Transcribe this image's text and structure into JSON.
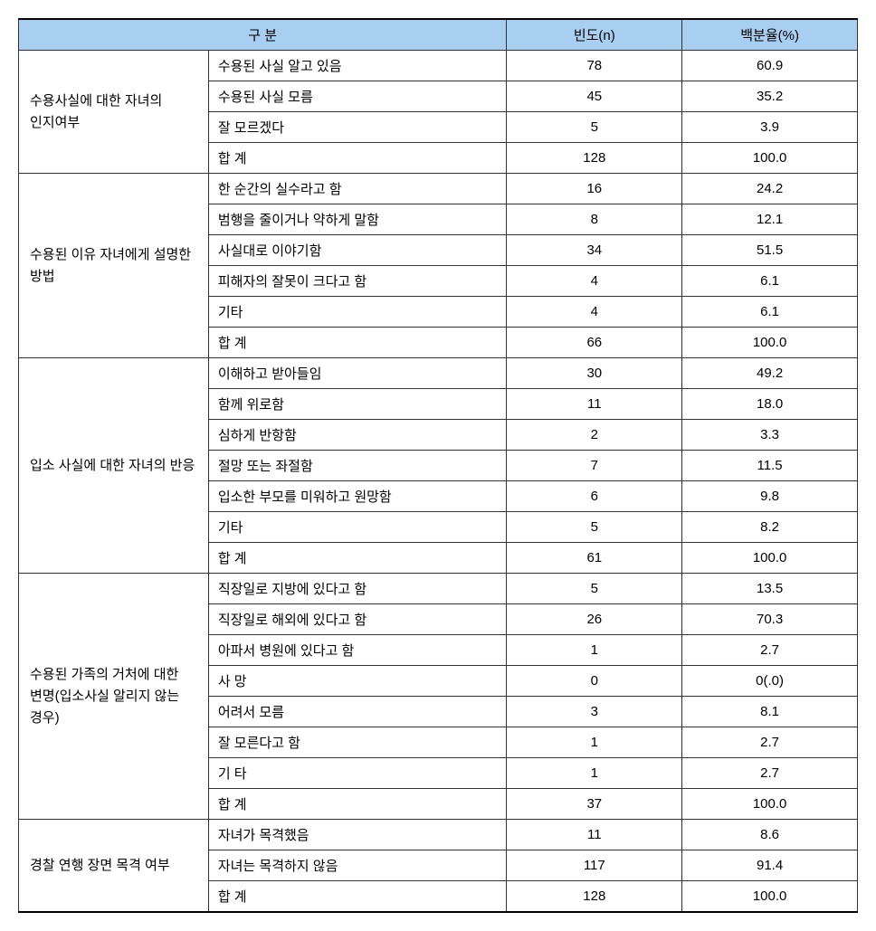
{
  "headers": {
    "category": "구 분",
    "frequency": "빈도(n)",
    "percent": "백분율(%)"
  },
  "sections": [
    {
      "category": "수용사실에 대한 자녀의 인지여부",
      "rows": [
        {
          "item": "수용된 사실 알고 있음",
          "freq": "78",
          "pct": "60.9"
        },
        {
          "item": "수용된 사실 모름",
          "freq": "45",
          "pct": "35.2"
        },
        {
          "item": "잘 모르겠다",
          "freq": "5",
          "pct": "3.9"
        },
        {
          "item": "합 계",
          "freq": "128",
          "pct": "100.0"
        }
      ]
    },
    {
      "category": "수용된 이유 자녀에게 설명한 방법",
      "rows": [
        {
          "item": "한 순간의 실수라고 함",
          "freq": "16",
          "pct": "24.2"
        },
        {
          "item": "범행을 줄이거나 약하게 말함",
          "freq": "8",
          "pct": "12.1"
        },
        {
          "item": "사실대로 이야기함",
          "freq": "34",
          "pct": "51.5"
        },
        {
          "item": "피해자의 잘못이 크다고 함",
          "freq": "4",
          "pct": "6.1"
        },
        {
          "item": "기타",
          "freq": "4",
          "pct": "6.1"
        },
        {
          "item": "합 계",
          "freq": "66",
          "pct": "100.0"
        }
      ]
    },
    {
      "category": "입소 사실에 대한 자녀의 반응",
      "rows": [
        {
          "item": "이해하고 받아들임",
          "freq": "30",
          "pct": "49.2"
        },
        {
          "item": "함께 위로함",
          "freq": "11",
          "pct": "18.0"
        },
        {
          "item": "심하게 반항함",
          "freq": "2",
          "pct": "3.3"
        },
        {
          "item": "절망 또는 좌절함",
          "freq": "7",
          "pct": "11.5"
        },
        {
          "item": "입소한 부모를 미워하고 원망함",
          "freq": "6",
          "pct": "9.8"
        },
        {
          "item": "기타",
          "freq": "5",
          "pct": "8.2"
        },
        {
          "item": "합 계",
          "freq": "61",
          "pct": "100.0"
        }
      ]
    },
    {
      "category": "수용된 가족의 거처에 대한 변명(입소사실 알리지 않는 경우)",
      "rows": [
        {
          "item": "직장일로 지방에 있다고 함",
          "freq": "5",
          "pct": "13.5"
        },
        {
          "item": "직장일로 해외에 있다고 함",
          "freq": "26",
          "pct": "70.3"
        },
        {
          "item": "아파서 병원에 있다고 함",
          "freq": "1",
          "pct": "2.7"
        },
        {
          "item": "사 망",
          "freq": "0",
          "pct": "0(.0)"
        },
        {
          "item": "어려서 모름",
          "freq": "3",
          "pct": "8.1"
        },
        {
          "item": "잘 모른다고 함",
          "freq": "1",
          "pct": "2.7"
        },
        {
          "item": "기 타",
          "freq": "1",
          "pct": "2.7"
        },
        {
          "item": "합 계",
          "freq": "37",
          "pct": "100.0"
        }
      ]
    },
    {
      "category": "경찰 연행 장면 목격 여부",
      "rows": [
        {
          "item": "자녀가 목격했음",
          "freq": "11",
          "pct": "8.6"
        },
        {
          "item": "자녀는 목격하지 않음",
          "freq": "117",
          "pct": "91.4"
        },
        {
          "item": "합 계",
          "freq": "128",
          "pct": "100.0"
        }
      ]
    }
  ],
  "styles": {
    "header_bg": "#a8cef0",
    "border_color": "#333333",
    "outer_border_color": "#000000",
    "font_size": 15,
    "background": "#ffffff"
  }
}
